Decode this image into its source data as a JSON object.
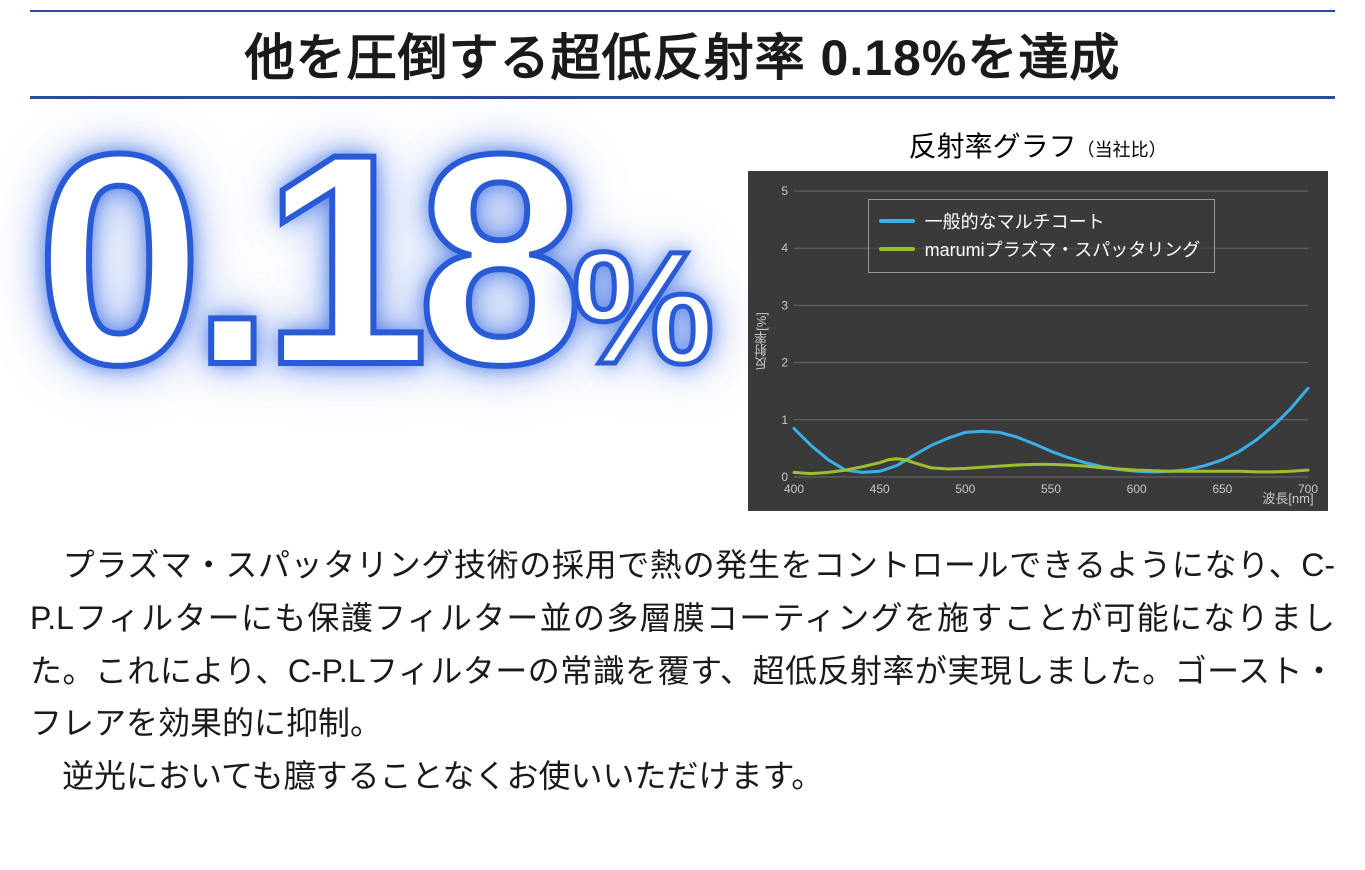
{
  "headline": "他を圧倒する超低反射率 0.18%を達成",
  "big_number": "0.18",
  "big_number_pct": "%",
  "chart": {
    "type": "line",
    "title_main": "反射率グラフ",
    "title_sub": "（当社比）",
    "background_color": "#3a3a3a",
    "grid_color": "#6b6b6b",
    "axis_text_color": "#c8c8c8",
    "ylabel": "反射率[%]",
    "xlabel": "波長[nm]",
    "xlim": [
      400,
      700
    ],
    "ylim": [
      0,
      5
    ],
    "xtick_step": 50,
    "ytick_step": 1,
    "xticks": [
      "400",
      "450",
      "500",
      "550",
      "600",
      "650",
      "700"
    ],
    "yticks": [
      "0",
      "1",
      "2",
      "3",
      "4",
      "5"
    ],
    "series": [
      {
        "name": "一般的なマルチコート",
        "color": "#3ab0e8",
        "line_width": 3,
        "points": [
          [
            400,
            0.85
          ],
          [
            410,
            0.55
          ],
          [
            420,
            0.3
          ],
          [
            430,
            0.12
          ],
          [
            440,
            0.08
          ],
          [
            450,
            0.1
          ],
          [
            460,
            0.2
          ],
          [
            470,
            0.38
          ],
          [
            480,
            0.55
          ],
          [
            490,
            0.68
          ],
          [
            500,
            0.78
          ],
          [
            510,
            0.8
          ],
          [
            520,
            0.78
          ],
          [
            530,
            0.7
          ],
          [
            540,
            0.58
          ],
          [
            550,
            0.45
          ],
          [
            560,
            0.34
          ],
          [
            570,
            0.25
          ],
          [
            580,
            0.18
          ],
          [
            590,
            0.13
          ],
          [
            600,
            0.1
          ],
          [
            610,
            0.09
          ],
          [
            620,
            0.1
          ],
          [
            630,
            0.13
          ],
          [
            640,
            0.2
          ],
          [
            650,
            0.3
          ],
          [
            660,
            0.45
          ],
          [
            670,
            0.65
          ],
          [
            680,
            0.9
          ],
          [
            690,
            1.2
          ],
          [
            700,
            1.55
          ]
        ]
      },
      {
        "name": "marumiプラズマ・スパッタリング",
        "color": "#9bbf2e",
        "line_width": 3,
        "points": [
          [
            400,
            0.08
          ],
          [
            410,
            0.06
          ],
          [
            420,
            0.08
          ],
          [
            430,
            0.12
          ],
          [
            440,
            0.18
          ],
          [
            450,
            0.25
          ],
          [
            455,
            0.3
          ],
          [
            460,
            0.32
          ],
          [
            465,
            0.3
          ],
          [
            470,
            0.25
          ],
          [
            480,
            0.16
          ],
          [
            490,
            0.14
          ],
          [
            500,
            0.15
          ],
          [
            510,
            0.17
          ],
          [
            520,
            0.19
          ],
          [
            530,
            0.21
          ],
          [
            540,
            0.22
          ],
          [
            550,
            0.22
          ],
          [
            560,
            0.21
          ],
          [
            570,
            0.19
          ],
          [
            580,
            0.16
          ],
          [
            590,
            0.14
          ],
          [
            600,
            0.12
          ],
          [
            610,
            0.11
          ],
          [
            620,
            0.1
          ],
          [
            630,
            0.1
          ],
          [
            640,
            0.1
          ],
          [
            650,
            0.1
          ],
          [
            660,
            0.1
          ],
          [
            670,
            0.09
          ],
          [
            680,
            0.09
          ],
          [
            690,
            0.1
          ],
          [
            700,
            0.12
          ]
        ]
      }
    ]
  },
  "body": {
    "p": "　プラズマ・スパッタリング技術の採用で熱の発生をコントロールできるようになり、C-P.Lフィルターにも保護フィルター並の多層膜コーティングを施すことが可能になりました。これにより、C-P.Lフィルターの常識を覆す、超低反射率が実現しました。ゴースト・フレアを効果的に抑制。\n　逆光においても臆することなくお使いいただけます。"
  },
  "colors": {
    "rule": "#2a4b9b",
    "stroke": "#2a5bd6"
  }
}
